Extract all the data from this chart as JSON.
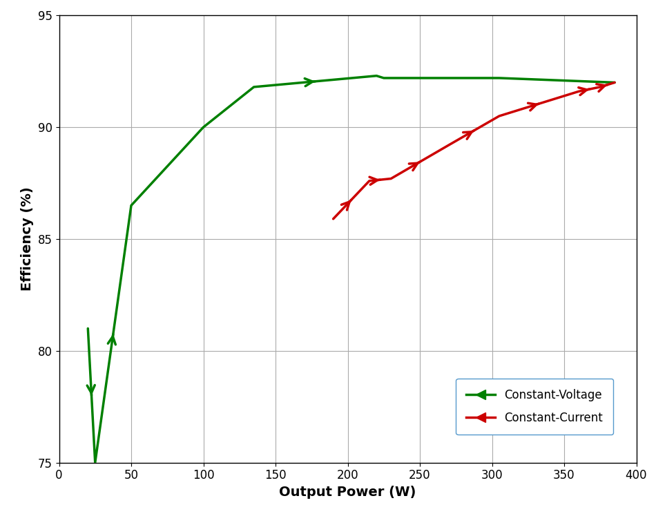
{
  "cv_x": [
    20,
    25,
    50,
    100,
    135,
    220,
    225,
    305,
    385
  ],
  "cv_y": [
    81.0,
    75.0,
    86.5,
    90.0,
    91.8,
    92.3,
    92.2,
    92.2,
    92.0
  ],
  "cc_x": [
    190,
    215,
    230,
    270,
    305,
    360,
    375,
    385
  ],
  "cc_y": [
    85.9,
    87.6,
    87.7,
    89.2,
    90.5,
    91.6,
    91.8,
    92.0
  ],
  "cv_color": "#008000",
  "cc_color": "#cc0000",
  "cv_label": "Constant-Voltage",
  "cc_label": "Constant-Current",
  "xlabel": "Output Power (W)",
  "ylabel": "Efficiency (%)",
  "xlim": [
    0,
    400
  ],
  "ylim": [
    75,
    95
  ],
  "xticks": [
    0,
    50,
    100,
    150,
    200,
    250,
    300,
    350,
    400
  ],
  "yticks": [
    75,
    80,
    85,
    90,
    95
  ],
  "bg_color": "#ffffff",
  "grid_color": "#aaaaaa",
  "axis_label_fontsize": 14,
  "tick_fontsize": 12,
  "legend_fontsize": 12,
  "line_width": 2.5,
  "cv_arrow_indices": [
    1,
    2
  ],
  "cc_arrow_indices": [
    0,
    1,
    2,
    3,
    4,
    5,
    6,
    7
  ],
  "cv_arrow_indices_all": [
    0,
    1,
    2,
    3,
    4,
    5,
    6,
    7,
    8
  ]
}
